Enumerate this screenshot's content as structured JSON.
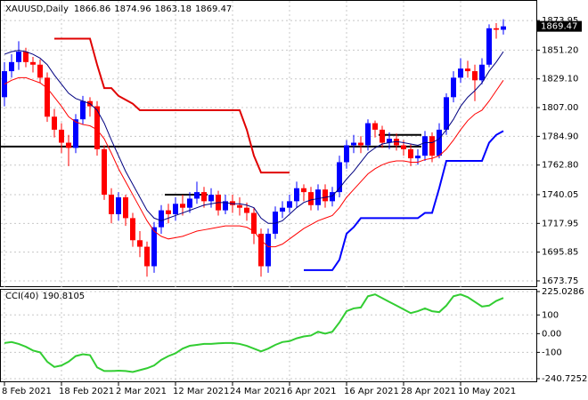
{
  "chart_data": [
    {
      "type": "candlestick",
      "title": "XAUUSD,Daily",
      "categories": [
        "8 Feb 2021",
        null,
        null,
        null,
        null,
        null,
        null,
        null,
        "18 Feb 2021",
        null,
        null,
        null,
        null,
        null,
        null,
        null,
        "2 Mar 2021",
        null,
        null,
        null,
        null,
        null,
        null,
        null,
        "12 Mar 2021",
        null,
        null,
        null,
        null,
        null,
        null,
        null,
        "24 Mar 2021",
        null,
        null,
        null,
        null,
        null,
        null,
        null,
        "6 Apr 2021",
        null,
        null,
        null,
        null,
        null,
        null,
        null,
        "16 Apr 2021",
        null,
        null,
        null,
        null,
        null,
        null,
        null,
        "28 Apr 2021",
        null,
        null,
        null,
        null,
        null,
        null,
        null,
        "10 May 2021",
        null,
        null,
        null,
        null,
        null,
        null
      ],
      "open": [
        1815,
        1835,
        1842,
        1850,
        1842,
        1840,
        1830,
        1800,
        1790,
        1780,
        1776,
        1798,
        1812,
        1808,
        1775,
        1740,
        1725,
        1738,
        1722,
        1705,
        1700,
        1685,
        1715,
        1728,
        1725,
        1733,
        1730,
        1737,
        1742,
        1735,
        1740,
        1728,
        1735,
        1732,
        1730,
        1726,
        1710,
        1685,
        1710,
        1727,
        1730,
        1735,
        1745,
        1742,
        1732,
        1744,
        1735,
        1742,
        1765,
        1778,
        1780,
        1778,
        1795,
        1790,
        1780,
        1783,
        1778,
        1775,
        1768,
        1770,
        1785,
        1770,
        1790,
        1815,
        1830,
        1837,
        1835,
        1828,
        1840,
        1868,
        1866.86
      ],
      "high": [
        1842,
        1848,
        1858,
        1853,
        1846,
        1844,
        1834,
        1806,
        1795,
        1786,
        1802,
        1816,
        1815,
        1812,
        1778,
        1745,
        1742,
        1740,
        1726,
        1712,
        1704,
        1719,
        1732,
        1733,
        1738,
        1740,
        1742,
        1750,
        1746,
        1745,
        1743,
        1740,
        1740,
        1738,
        1734,
        1730,
        1714,
        1714,
        1731,
        1735,
        1740,
        1750,
        1748,
        1746,
        1748,
        1748,
        1746,
        1770,
        1782,
        1786,
        1785,
        1798,
        1797,
        1793,
        1788,
        1787,
        1782,
        1779,
        1775,
        1789,
        1788,
        1795,
        1818,
        1835,
        1845,
        1843,
        1840,
        1845,
        1871,
        1872,
        1874.96
      ],
      "low": [
        1808,
        1830,
        1836,
        1838,
        1834,
        1826,
        1796,
        1784,
        1772,
        1762,
        1772,
        1794,
        1800,
        1770,
        1736,
        1718,
        1720,
        1716,
        1700,
        1692,
        1677,
        1680,
        1710,
        1718,
        1720,
        1724,
        1726,
        1733,
        1730,
        1730,
        1724,
        1725,
        1726,
        1724,
        1720,
        1702,
        1677,
        1680,
        1706,
        1722,
        1726,
        1730,
        1735,
        1728,
        1728,
        1730,
        1731,
        1738,
        1760,
        1772,
        1772,
        1774,
        1784,
        1776,
        1775,
        1774,
        1770,
        1762,
        1763,
        1766,
        1765,
        1768,
        1786,
        1811,
        1826,
        1830,
        1812,
        1825,
        1838,
        1860,
        1863.18
      ],
      "close": [
        1835,
        1842,
        1850,
        1842,
        1840,
        1830,
        1800,
        1790,
        1780,
        1776,
        1798,
        1812,
        1808,
        1775,
        1740,
        1725,
        1738,
        1722,
        1705,
        1700,
        1685,
        1715,
        1728,
        1725,
        1733,
        1730,
        1737,
        1742,
        1735,
        1740,
        1728,
        1735,
        1732,
        1730,
        1726,
        1710,
        1685,
        1710,
        1727,
        1730,
        1735,
        1745,
        1742,
        1732,
        1744,
        1735,
        1742,
        1765,
        1778,
        1780,
        1778,
        1795,
        1790,
        1780,
        1783,
        1778,
        1775,
        1768,
        1770,
        1785,
        1770,
        1790,
        1815,
        1830,
        1837,
        1835,
        1828,
        1840,
        1868,
        1866.86,
        1869.47
      ],
      "up_color": "#0000ff",
      "down_color": "#ff0000",
      "overlays": [
        {
          "color": "#000080",
          "values": [
            1848,
            1850,
            1851,
            1850,
            1848,
            1845,
            1840,
            1832,
            1825,
            1818,
            1814,
            1812,
            1810,
            1805,
            1795,
            1782,
            1770,
            1758,
            1748,
            1738,
            1728,
            1722,
            1720,
            1722,
            1724,
            1726,
            1728,
            1730,
            1732,
            1733,
            1734,
            1734,
            1733,
            1733,
            1732,
            1730,
            1722,
            1718,
            1718,
            1720,
            1725,
            1730,
            1734,
            1736,
            1737,
            1738,
            1739,
            1745,
            1752,
            1758,
            1765,
            1772,
            1776,
            1779,
            1780,
            1781,
            1780,
            1779,
            1778,
            1780,
            1780,
            1783,
            1790,
            1798,
            1808,
            1815,
            1820,
            1826,
            1835,
            1842,
            1850
          ]
        },
        {
          "color": "#ff0000",
          "values": [
            1825,
            1828,
            1830,
            1830,
            1828,
            1826,
            1822,
            1815,
            1808,
            1800,
            1796,
            1794,
            1793,
            1790,
            1783,
            1772,
            1760,
            1750,
            1740,
            1730,
            1720,
            1712,
            1708,
            1706,
            1707,
            1708,
            1710,
            1712,
            1713,
            1714,
            1715,
            1716,
            1716,
            1716,
            1715,
            1712,
            1705,
            1700,
            1700,
            1702,
            1706,
            1710,
            1714,
            1717,
            1720,
            1722,
            1724,
            1730,
            1738,
            1744,
            1750,
            1756,
            1760,
            1763,
            1765,
            1766,
            1766,
            1765,
            1765,
            1767,
            1768,
            1770,
            1775,
            1782,
            1790,
            1797,
            1802,
            1805,
            1812,
            1820,
            1828
          ]
        },
        {
          "color": "#e00000",
          "width": 2,
          "values": [
            null,
            null,
            null,
            null,
            null,
            null,
            null,
            1860,
            1860,
            1860,
            1860,
            1860,
            1860,
            1840,
            1822,
            1822,
            1816,
            1813,
            1810,
            1805,
            1805,
            1805,
            1805,
            1805,
            1805,
            1805,
            1805,
            1805,
            1805,
            1805,
            1805,
            1805,
            1805,
            1805,
            1790,
            1770,
            1757,
            1757,
            1757,
            1757,
            1757,
            null,
            null,
            null,
            null,
            null,
            null,
            null,
            null,
            null,
            null,
            null,
            null,
            null,
            null,
            null,
            null,
            null,
            null,
            null,
            null,
            null,
            null,
            null,
            null,
            null,
            null,
            null,
            null,
            null,
            null
          ]
        },
        {
          "color": "#0000ff",
          "width": 2,
          "values": [
            null,
            null,
            null,
            null,
            null,
            null,
            null,
            null,
            null,
            null,
            null,
            null,
            null,
            null,
            null,
            null,
            null,
            null,
            null,
            null,
            null,
            null,
            null,
            null,
            null,
            null,
            null,
            null,
            null,
            null,
            null,
            null,
            null,
            null,
            null,
            null,
            null,
            null,
            null,
            null,
            null,
            null,
            1682,
            1682,
            1682,
            1682,
            1682,
            1690,
            1710,
            1715,
            1722,
            1722,
            1722,
            1722,
            1722,
            1722,
            1722,
            1722,
            1722,
            1726,
            1726,
            1745,
            1766,
            1766,
            1766,
            1766,
            1766,
            1766,
            1780,
            1786,
            1789
          ]
        }
      ],
      "hlines": [
        {
          "value": 1777,
          "start": 0,
          "end": 58
        },
        {
          "value": 1740,
          "start": 23,
          "end": 28
        },
        {
          "value": 1786,
          "start": 53,
          "end": 58
        }
      ],
      "ylim": [
        1671,
        1887
      ],
      "yticks": [
        1673.75,
        1695.85,
        1717.95,
        1740.05,
        {
          "value": 1762.8,
          "label": "1762.80"
        },
        {
          "value": 1784.9,
          "label": "1784.90"
        },
        {
          "value": 1807,
          "label": "1807.00"
        },
        {
          "value": 1829.1,
          "label": "1829.10"
        },
        {
          "value": 1851.2,
          "label": "1851.20"
        },
        1873.95
      ],
      "grid": true
    },
    {
      "type": "line",
      "title": "CCI(40)",
      "series": [
        {
          "color": "#32cd32",
          "values": [
            -50,
            -45,
            -55,
            -70,
            -90,
            -100,
            -150,
            -178,
            -170,
            -150,
            -120,
            -110,
            -115,
            -180,
            -200,
            -200,
            -198,
            -200,
            -205,
            -195,
            -185,
            -170,
            -140,
            -120,
            -105,
            -80,
            -65,
            -60,
            -55,
            -55,
            -52,
            -50,
            -50,
            -55,
            -65,
            -80,
            -95,
            -80,
            -60,
            -45,
            -40,
            -25,
            -15,
            -10,
            10,
            0,
            10,
            60,
            120,
            135,
            140,
            200,
            210,
            190,
            170,
            150,
            130,
            110,
            120,
            135,
            120,
            115,
            150,
            200,
            210,
            195,
            170,
            145,
            150,
            175,
            190.8105
          ]
        }
      ],
      "ylim": [
        -240.7252,
        225.0286
      ],
      "yticks": [
        225.0286,
        100,
        {
          "value": 0,
          "label": "0.00"
        },
        -100,
        -240.7252
      ],
      "grid": true
    }
  ]
}
